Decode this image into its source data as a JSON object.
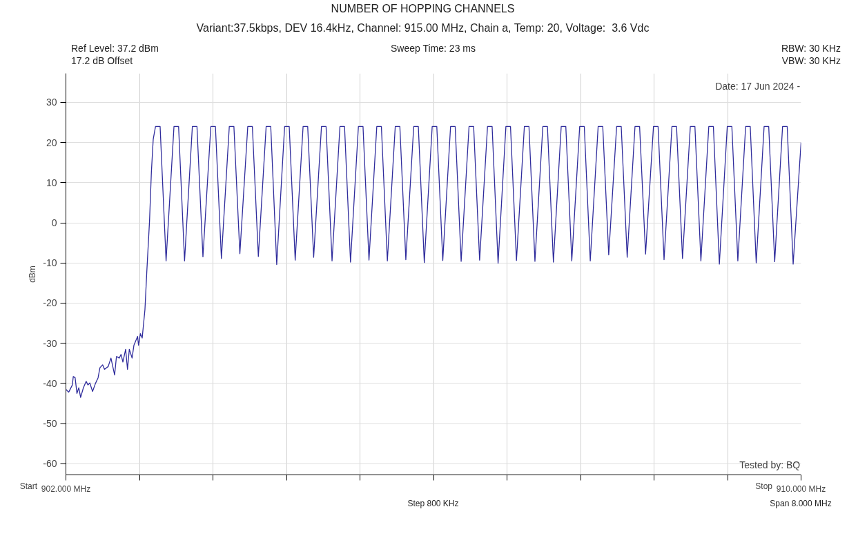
{
  "chart_data": {
    "type": "line",
    "title": "NUMBER OF HOPPING CHANNELS",
    "subtitle": "Variant:37.5kbps, DEV 16.4kHz, Channel: 915.00 MHz, Chain a, Temp: 20, Voltage:  3.6 Vdc",
    "ylabel": "dBm",
    "annotations": [
      "Ref Level: 37.2 dBm",
      "17.2 dB Offset",
      "Sweep Time: 23 ms",
      "RBW: 30 KHz",
      "VBW: 30 KHz",
      "Date: 17 Jun 2024 -",
      "Tested by: BQ",
      "Step 800 KHz",
      "Span 8.000 MHz",
      "Start",
      "Stop"
    ],
    "xlim": [
      902,
      910
    ],
    "ylim": [
      -62.8,
      37.2
    ],
    "xticks": [
      {
        "value": 902,
        "label": "902.000 MHz"
      },
      {
        "value": 902.8,
        "label": null
      },
      {
        "value": 903.6,
        "label": null
      },
      {
        "value": 904.4,
        "label": null
      },
      {
        "value": 905.2,
        "label": null
      },
      {
        "value": 906.0,
        "label": null
      },
      {
        "value": 906.8,
        "label": null
      },
      {
        "value": 907.6,
        "label": null
      },
      {
        "value": 908.4,
        "label": null
      },
      {
        "value": 909.2,
        "label": null
      },
      {
        "value": 910,
        "label": "910.000 MHz"
      }
    ],
    "yticks": [
      -60,
      -50,
      -40,
      -30,
      -20,
      -10,
      0,
      10,
      20,
      30
    ],
    "grid": true,
    "series": [
      {
        "color": "#2f2c9c",
        "x": [
          902.0,
          902.03,
          902.07,
          902.08,
          902.1,
          902.12,
          902.14,
          902.16,
          902.19,
          902.22,
          902.24,
          902.26,
          902.29,
          902.32,
          902.35,
          902.37,
          902.4,
          902.42,
          902.46,
          902.49,
          902.53,
          902.55,
          902.58,
          902.6,
          902.62,
          902.65,
          902.67,
          902.69,
          902.72,
          902.74,
          902.78,
          902.79,
          902.81,
          902.83,
          902.86,
          902.88,
          902.91,
          902.93,
          902.95,
          902.975,
          903.025,
          903.09,
          903.176,
          903.226,
          903.291,
          903.376,
          903.426,
          903.491,
          903.577,
          903.627,
          903.692,
          903.778,
          903.828,
          903.893,
          903.979,
          904.029,
          904.094,
          904.179,
          904.229,
          904.294,
          904.38,
          904.43,
          904.495,
          904.581,
          904.631,
          904.696,
          904.781,
          904.831,
          904.896,
          904.982,
          905.032,
          905.097,
          905.183,
          905.233,
          905.298,
          905.383,
          905.433,
          905.498,
          905.584,
          905.634,
          905.699,
          905.785,
          905.835,
          905.9,
          905.986,
          906.036,
          906.101,
          906.186,
          906.236,
          906.301,
          906.387,
          906.437,
          906.502,
          906.588,
          906.638,
          906.703,
          906.788,
          906.838,
          906.903,
          906.989,
          907.039,
          907.104,
          907.19,
          907.24,
          907.305,
          907.39,
          907.44,
          907.505,
          907.591,
          907.641,
          907.706,
          907.792,
          907.842,
          907.907,
          907.993,
          908.043,
          908.108,
          908.193,
          908.243,
          908.308,
          908.394,
          908.444,
          908.509,
          908.595,
          908.645,
          908.71,
          908.795,
          908.845,
          908.91,
          908.996,
          909.046,
          909.111,
          909.197,
          909.247,
          909.312,
          909.397,
          909.447,
          909.512,
          909.598,
          909.648,
          909.713,
          909.799,
          909.849,
          909.914,
          910.0
        ],
        "values": [
          -41.5,
          -42.2,
          -40.4,
          -38.3,
          -38.6,
          -42.5,
          -41.1,
          -43.5,
          -41.1,
          -39.5,
          -40.4,
          -39.9,
          -42.0,
          -40.1,
          -38.6,
          -36.1,
          -35.4,
          -36.5,
          -35.8,
          -33.7,
          -37.9,
          -33.3,
          -33.7,
          -32.8,
          -34.7,
          -31.5,
          -36.5,
          -31.5,
          -33.7,
          -30.5,
          -28.3,
          -30.5,
          -27.6,
          -28.7,
          -21.6,
          -12.3,
          0.5,
          12.6,
          20.8,
          24.0,
          24.0,
          -9.5,
          24.0,
          24.0,
          -9.5,
          24.0,
          24.0,
          -8.5,
          24.0,
          24.0,
          -8.9,
          24.0,
          24.0,
          -7.7,
          24.0,
          24.0,
          -8.4,
          24.0,
          24.0,
          -10.4,
          24.0,
          24.0,
          -9.3,
          24.0,
          24.0,
          -8.6,
          24.0,
          24.0,
          -9.5,
          24.0,
          24.0,
          -9.8,
          24.0,
          24.0,
          -9.3,
          24.0,
          24.0,
          -9.5,
          24.0,
          24.0,
          -9.2,
          24.0,
          24.0,
          -9.9,
          24.0,
          24.0,
          -9.4,
          24.0,
          24.0,
          -9.6,
          24.0,
          24.0,
          -9.3,
          24.0,
          24.0,
          -10.1,
          24.0,
          24.0,
          -9.4,
          24.0,
          24.0,
          -9.6,
          24.0,
          24.0,
          -9.8,
          24.0,
          24.0,
          -9.5,
          24.0,
          24.0,
          -9.5,
          24.0,
          24.0,
          -8.0,
          24.0,
          24.0,
          -8.6,
          24.0,
          24.0,
          -7.8,
          24.0,
          24.0,
          -9.2,
          24.0,
          24.0,
          -8.9,
          24.0,
          24.0,
          -9.5,
          24.0,
          24.0,
          -10.3,
          24.0,
          24.0,
          -9.5,
          24.0,
          24.0,
          -10.0,
          24.0,
          24.0,
          -9.7,
          24.0,
          24.0,
          -10.3,
          20.0
        ]
      }
    ]
  }
}
